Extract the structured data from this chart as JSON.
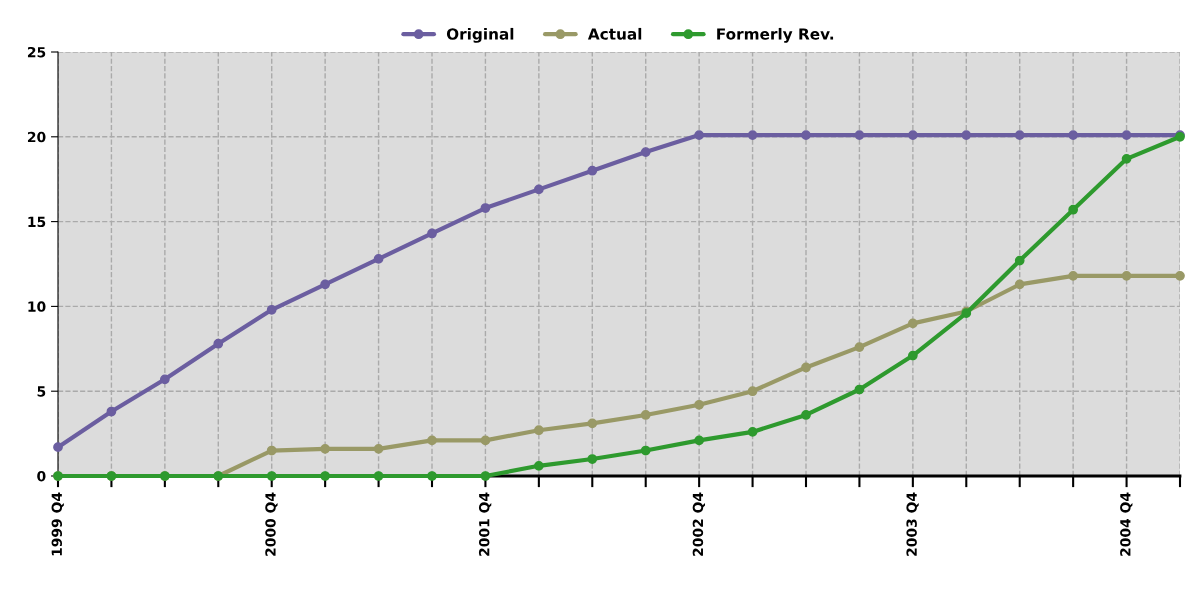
{
  "chart_data": {
    "type": "line",
    "categories": [
      "1999 Q4",
      null,
      null,
      null,
      "2000 Q4",
      null,
      null,
      null,
      "2001 Q4",
      null,
      null,
      null,
      "2002 Q4",
      null,
      null,
      null,
      "2003 Q4",
      null,
      null,
      null,
      "2004 Q4",
      null
    ],
    "series": [
      {
        "name": "Original",
        "color": "#6b5ea0",
        "values": [
          1.7,
          3.8,
          5.7,
          7.8,
          9.8,
          11.3,
          12.8,
          14.3,
          15.8,
          16.9,
          18.0,
          19.1,
          20.1,
          20.1,
          20.1,
          20.1,
          20.1,
          20.1,
          20.1,
          20.1,
          20.1,
          20.1
        ]
      },
      {
        "name": "Actual",
        "color": "#999966",
        "values": [
          0,
          0,
          0,
          0,
          1.5,
          1.6,
          1.6,
          2.1,
          2.1,
          2.7,
          3.1,
          3.6,
          4.2,
          5.0,
          6.4,
          7.6,
          9.0,
          9.7,
          11.3,
          11.8,
          11.8,
          11.8
        ]
      },
      {
        "name": "Formerly Rev.",
        "color": "#2e9a2e",
        "values": [
          0,
          0,
          0,
          0,
          0,
          0,
          0,
          0,
          0,
          0.6,
          1.0,
          1.5,
          2.1,
          2.6,
          3.6,
          5.1,
          7.1,
          9.6,
          12.7,
          15.7,
          18.7,
          20.0
        ]
      }
    ],
    "ylim": [
      0,
      25
    ],
    "yticks": [
      0,
      5,
      10,
      15,
      20,
      25
    ],
    "grid": true,
    "legend": "top",
    "marker": "circle",
    "line_style": "solid"
  }
}
